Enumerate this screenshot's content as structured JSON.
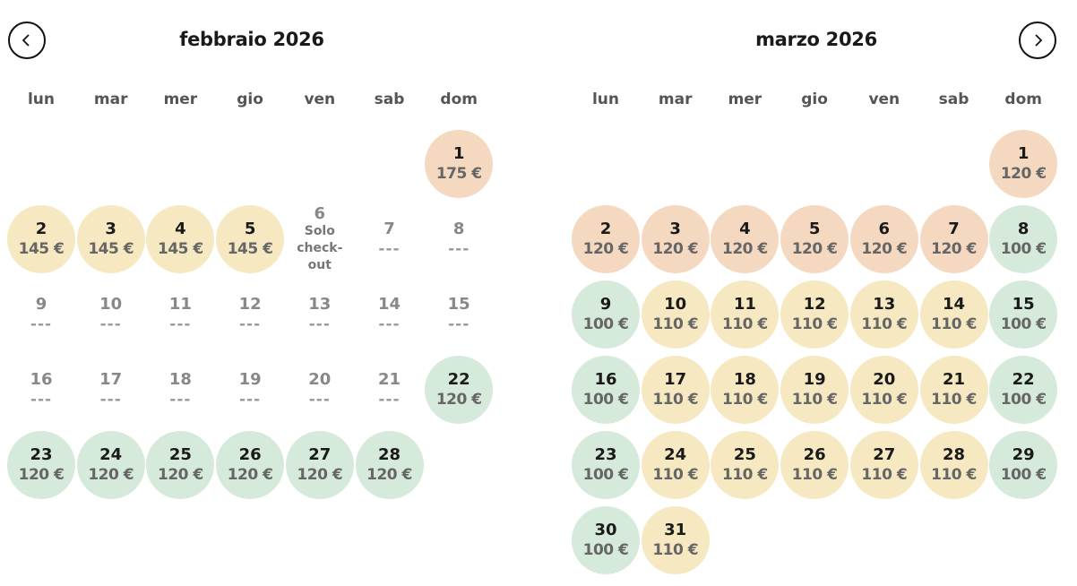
{
  "colors": {
    "peach": "#f5d8c0",
    "yellow": "#f6e8c1",
    "green": "#d5eadb",
    "none": "transparent"
  },
  "weekdays": [
    "lun",
    "mar",
    "mer",
    "gio",
    "ven",
    "sab",
    "dom"
  ],
  "months": [
    {
      "title": "febbraio 2026",
      "offset": 6,
      "days": [
        {
          "day": "1",
          "price": "175 €",
          "color": "peach"
        },
        {
          "day": "2",
          "price": "145 €",
          "color": "yellow"
        },
        {
          "day": "3",
          "price": "145 €",
          "color": "yellow"
        },
        {
          "day": "4",
          "price": "145 €",
          "color": "yellow"
        },
        {
          "day": "5",
          "price": "145 €",
          "color": "yellow"
        },
        {
          "day": "6",
          "price": "Solo\ncheck-\nout",
          "color": "none",
          "type": "checkout"
        },
        {
          "day": "7",
          "price": "---",
          "color": "none",
          "type": "na"
        },
        {
          "day": "8",
          "price": "---",
          "color": "none",
          "type": "na"
        },
        {
          "day": "9",
          "price": "---",
          "color": "none",
          "type": "na"
        },
        {
          "day": "10",
          "price": "---",
          "color": "none",
          "type": "na"
        },
        {
          "day": "11",
          "price": "---",
          "color": "none",
          "type": "na"
        },
        {
          "day": "12",
          "price": "---",
          "color": "none",
          "type": "na"
        },
        {
          "day": "13",
          "price": "---",
          "color": "none",
          "type": "na"
        },
        {
          "day": "14",
          "price": "---",
          "color": "none",
          "type": "na"
        },
        {
          "day": "15",
          "price": "---",
          "color": "none",
          "type": "na"
        },
        {
          "day": "16",
          "price": "---",
          "color": "none",
          "type": "na"
        },
        {
          "day": "17",
          "price": "---",
          "color": "none",
          "type": "na"
        },
        {
          "day": "18",
          "price": "---",
          "color": "none",
          "type": "na"
        },
        {
          "day": "19",
          "price": "---",
          "color": "none",
          "type": "na"
        },
        {
          "day": "20",
          "price": "---",
          "color": "none",
          "type": "na"
        },
        {
          "day": "21",
          "price": "---",
          "color": "none",
          "type": "na"
        },
        {
          "day": "22",
          "price": "120 €",
          "color": "green"
        },
        {
          "day": "23",
          "price": "120 €",
          "color": "green"
        },
        {
          "day": "24",
          "price": "120 €",
          "color": "green"
        },
        {
          "day": "25",
          "price": "120 €",
          "color": "green"
        },
        {
          "day": "26",
          "price": "120 €",
          "color": "green"
        },
        {
          "day": "27",
          "price": "120 €",
          "color": "green"
        },
        {
          "day": "28",
          "price": "120 €",
          "color": "green"
        }
      ]
    },
    {
      "title": "marzo 2026",
      "offset": 6,
      "days": [
        {
          "day": "1",
          "price": "120 €",
          "color": "peach"
        },
        {
          "day": "2",
          "price": "120 €",
          "color": "peach"
        },
        {
          "day": "3",
          "price": "120 €",
          "color": "peach"
        },
        {
          "day": "4",
          "price": "120 €",
          "color": "peach"
        },
        {
          "day": "5",
          "price": "120 €",
          "color": "peach"
        },
        {
          "day": "6",
          "price": "120 €",
          "color": "peach"
        },
        {
          "day": "7",
          "price": "120 €",
          "color": "peach"
        },
        {
          "day": "8",
          "price": "100 €",
          "color": "green"
        },
        {
          "day": "9",
          "price": "100 €",
          "color": "green"
        },
        {
          "day": "10",
          "price": "110 €",
          "color": "yellow"
        },
        {
          "day": "11",
          "price": "110 €",
          "color": "yellow"
        },
        {
          "day": "12",
          "price": "110 €",
          "color": "yellow"
        },
        {
          "day": "13",
          "price": "110 €",
          "color": "yellow"
        },
        {
          "day": "14",
          "price": "110 €",
          "color": "yellow"
        },
        {
          "day": "15",
          "price": "100 €",
          "color": "green"
        },
        {
          "day": "16",
          "price": "100 €",
          "color": "green"
        },
        {
          "day": "17",
          "price": "110 €",
          "color": "yellow"
        },
        {
          "day": "18",
          "price": "110 €",
          "color": "yellow"
        },
        {
          "day": "19",
          "price": "110 €",
          "color": "yellow"
        },
        {
          "day": "20",
          "price": "110 €",
          "color": "yellow"
        },
        {
          "day": "21",
          "price": "110 €",
          "color": "yellow"
        },
        {
          "day": "22",
          "price": "100 €",
          "color": "green"
        },
        {
          "day": "23",
          "price": "100 €",
          "color": "green"
        },
        {
          "day": "24",
          "price": "110 €",
          "color": "yellow"
        },
        {
          "day": "25",
          "price": "110 €",
          "color": "yellow"
        },
        {
          "day": "26",
          "price": "110 €",
          "color": "yellow"
        },
        {
          "day": "27",
          "price": "110 €",
          "color": "yellow"
        },
        {
          "day": "28",
          "price": "110 €",
          "color": "yellow"
        },
        {
          "day": "29",
          "price": "100 €",
          "color": "green"
        },
        {
          "day": "30",
          "price": "100 €",
          "color": "green"
        },
        {
          "day": "31",
          "price": "110 €",
          "color": "yellow"
        }
      ]
    }
  ]
}
